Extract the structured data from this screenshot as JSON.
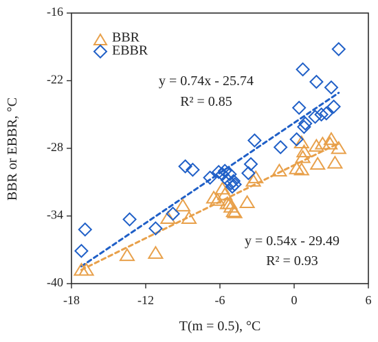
{
  "chart_data": {
    "type": "scatter",
    "title": "",
    "xlabel": "T(m = 0.5), °C",
    "ylabel": "BBR or EBBR, °C",
    "xlim": [
      -18,
      6
    ],
    "ylim": [
      -40,
      -16
    ],
    "x_ticks": [
      -18,
      -12,
      -6,
      0,
      6
    ],
    "y_ticks": [
      -40,
      -34,
      -28,
      -22,
      -16
    ],
    "x_tick_labels": [
      "-18",
      "-12",
      "-6",
      "0",
      "6"
    ],
    "y_tick_labels": [
      "-40",
      "-34",
      "-28",
      "-22",
      "-16"
    ],
    "grid": false,
    "legend_position": "top-left",
    "series": [
      {
        "name": "BBR",
        "marker": "triangle",
        "color": "#E8A04A",
        "points": [
          [
            -17.2,
            -38.8
          ],
          [
            -16.8,
            -38.8
          ],
          [
            -13.5,
            -37.5
          ],
          [
            -11.2,
            -37.3
          ],
          [
            -10.2,
            -34.2
          ],
          [
            -9.0,
            -33.1
          ],
          [
            -8.5,
            -34.2
          ],
          [
            -6.5,
            -32.4
          ],
          [
            -6.2,
            -32.6
          ],
          [
            -5.8,
            -31.6
          ],
          [
            -5.6,
            -32.1
          ],
          [
            -5.4,
            -32.9
          ],
          [
            -5.2,
            -32.9
          ],
          [
            -5.1,
            -33.2
          ],
          [
            -4.9,
            -33.6
          ],
          [
            -4.8,
            -33.7
          ],
          [
            -3.8,
            -32.8
          ],
          [
            -3.3,
            -30.9
          ],
          [
            -3.1,
            -30.6
          ],
          [
            -1.2,
            -30.0
          ],
          [
            0.2,
            -29.8
          ],
          [
            0.6,
            -29.9
          ],
          [
            0.7,
            -28.8
          ],
          [
            0.8,
            -28.3
          ],
          [
            0.6,
            -27.5
          ],
          [
            1.8,
            -27.8
          ],
          [
            1.9,
            -29.4
          ],
          [
            2.3,
            -27.6
          ],
          [
            2.9,
            -27.6
          ],
          [
            3.0,
            -27.2
          ],
          [
            3.3,
            -29.3
          ],
          [
            3.6,
            -28.0
          ]
        ]
      },
      {
        "name": "EBBR",
        "marker": "diamond",
        "color": "#1F5FC7",
        "points": [
          [
            -17.2,
            -37.1
          ],
          [
            -16.9,
            -35.2
          ],
          [
            -13.3,
            -34.3
          ],
          [
            -11.2,
            -35.1
          ],
          [
            -9.8,
            -33.8
          ],
          [
            -8.8,
            -29.6
          ],
          [
            -8.2,
            -29.9
          ],
          [
            -6.8,
            -30.6
          ],
          [
            -6.1,
            -30.1
          ],
          [
            -5.8,
            -30.3
          ],
          [
            -5.6,
            -30.0
          ],
          [
            -5.4,
            -30.8
          ],
          [
            -5.2,
            -30.3
          ],
          [
            -5.1,
            -31.1
          ],
          [
            -5.0,
            -31.4
          ],
          [
            -4.9,
            -30.9
          ],
          [
            -4.8,
            -31.2
          ],
          [
            -3.7,
            -30.2
          ],
          [
            -3.5,
            -29.4
          ],
          [
            -3.2,
            -27.3
          ],
          [
            -1.1,
            -27.9
          ],
          [
            0.2,
            -27.2
          ],
          [
            0.4,
            -24.4
          ],
          [
            0.8,
            -26.1
          ],
          [
            0.9,
            -25.8
          ],
          [
            0.7,
            -21.0
          ],
          [
            1.7,
            -25.2
          ],
          [
            1.8,
            -22.1
          ],
          [
            2.2,
            -25.0
          ],
          [
            2.6,
            -24.9
          ],
          [
            3.0,
            -22.6
          ],
          [
            3.2,
            -24.3
          ],
          [
            3.6,
            -19.2
          ]
        ]
      }
    ],
    "trendlines": [
      {
        "series": "EBBR",
        "slope": 0.74,
        "intercept": -25.74,
        "x_range": [
          -17.2,
          3.6
        ],
        "equation": "y = 0.74x - 25.74",
        "r2": "R² = 0.85",
        "color": "#1F5FC7"
      },
      {
        "series": "BBR",
        "slope": 0.54,
        "intercept": -29.49,
        "x_range": [
          -17.2,
          3.6
        ],
        "equation": "y = 0.54x - 29.49",
        "r2": "R² = 0.93",
        "color": "#E8A04A"
      }
    ]
  }
}
